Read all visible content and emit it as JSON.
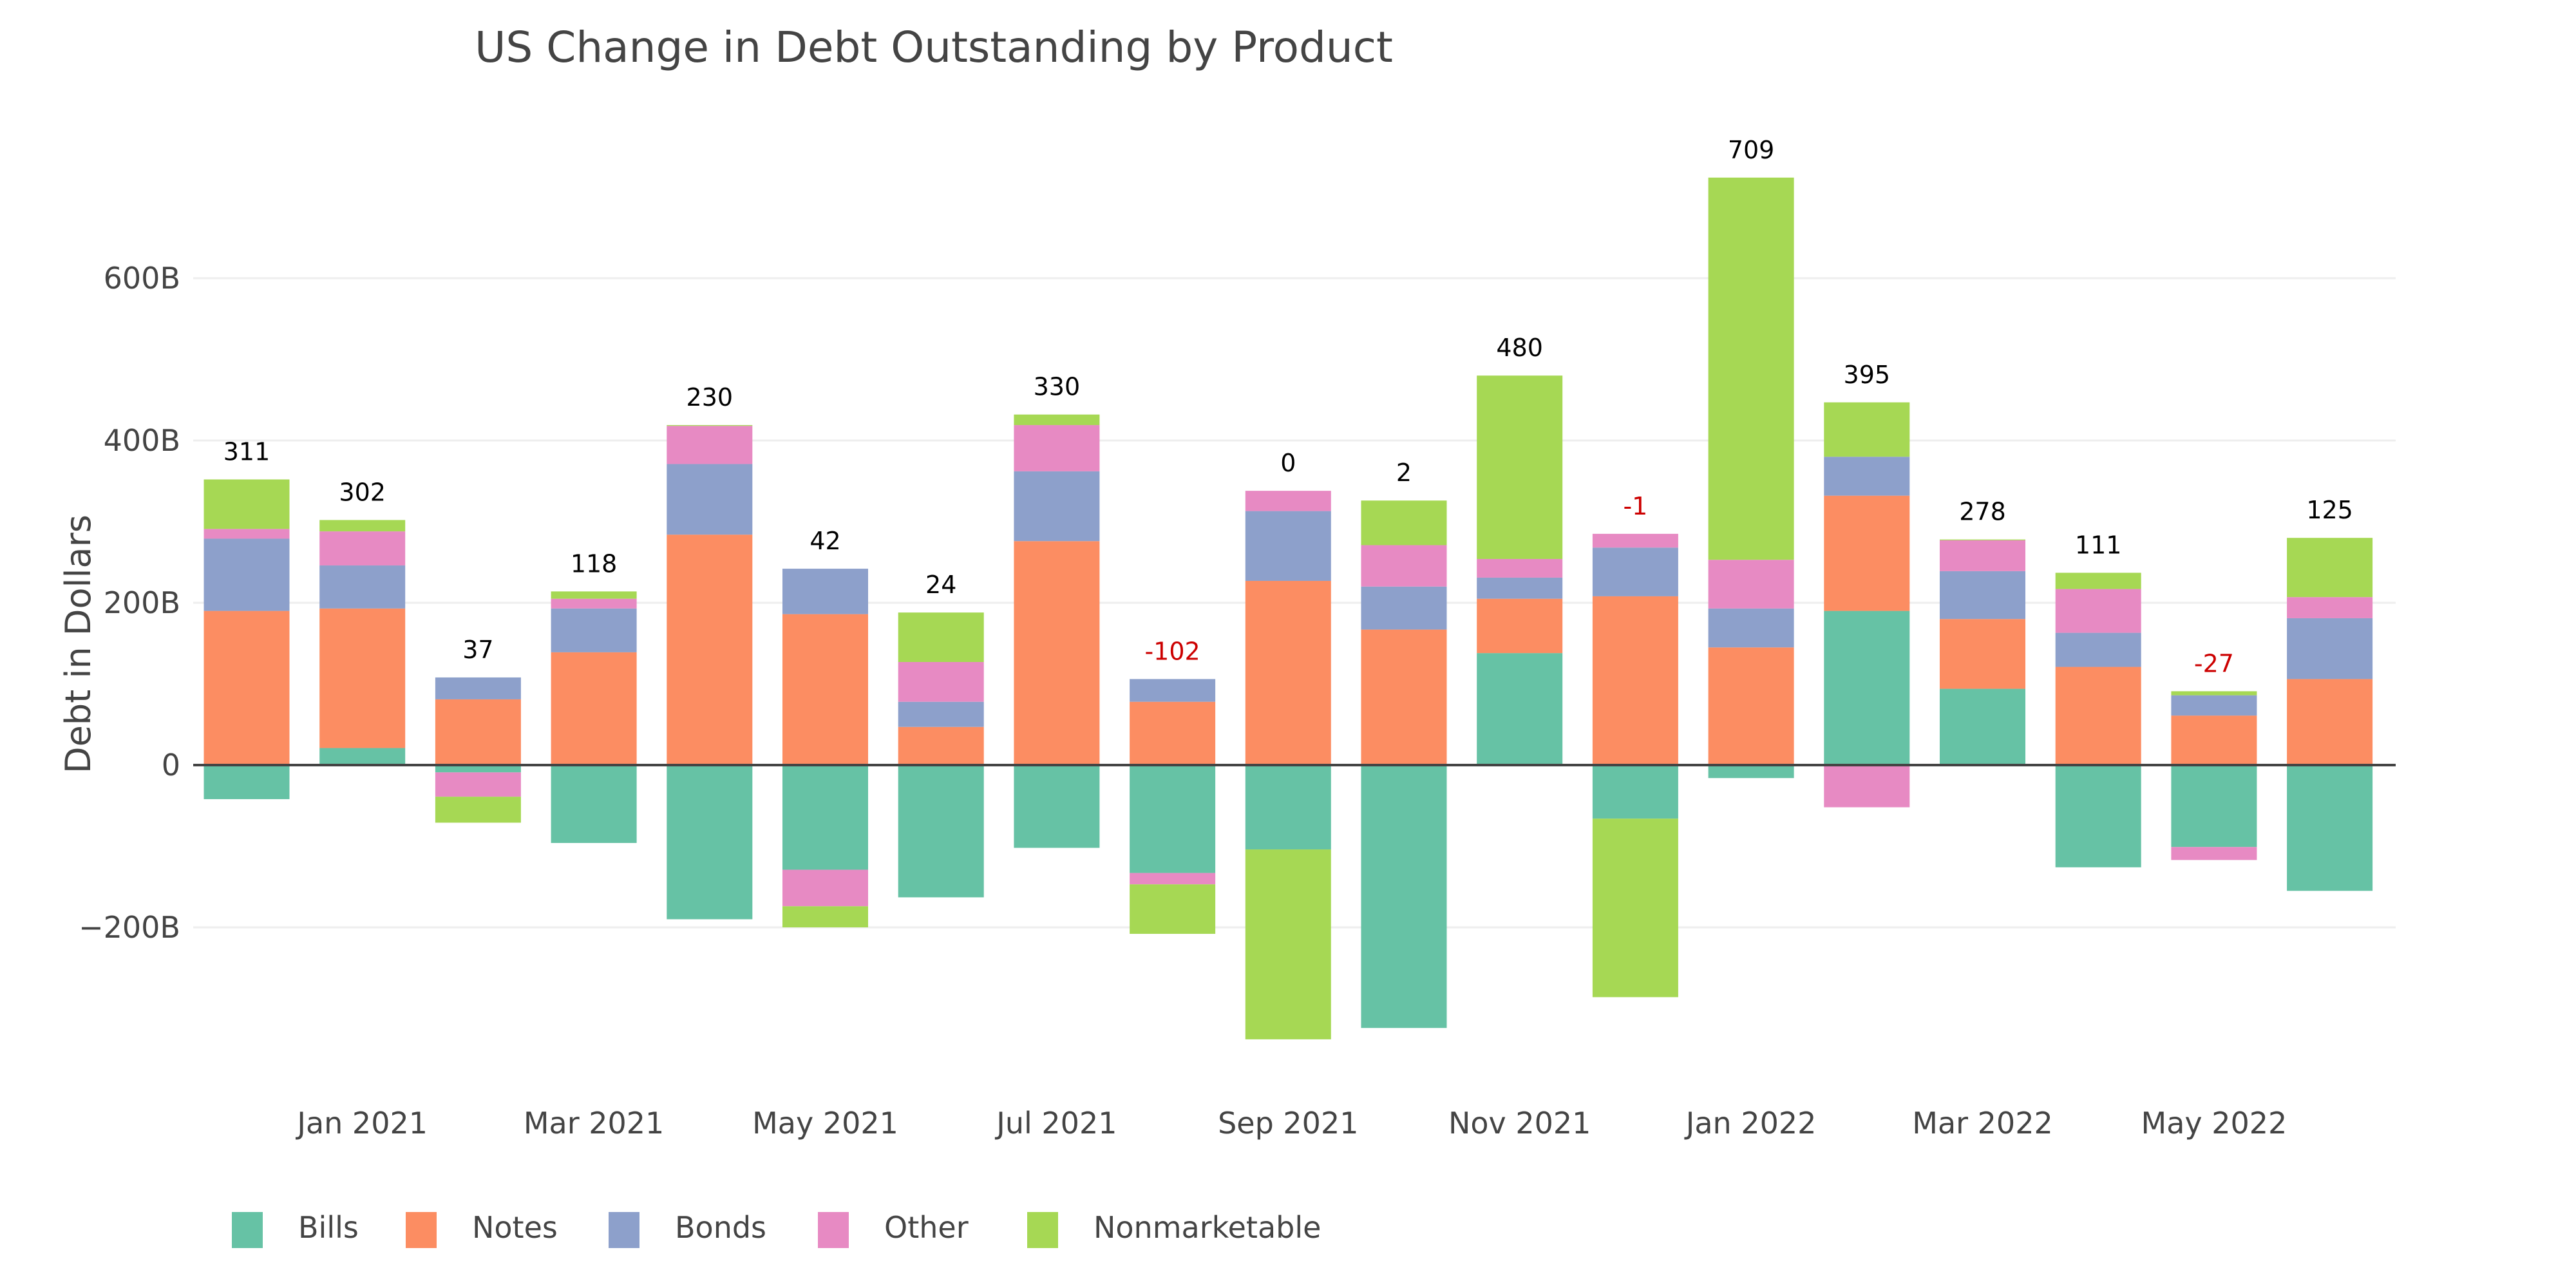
{
  "chart_data": {
    "type": "bar",
    "stacked": "relative",
    "title": "US Change in Debt Outstanding by Product",
    "xlabel": "",
    "ylabel": "Debt in Dollars",
    "ylim": [
      -380,
      800
    ],
    "yticks": [
      {
        "value": -200,
        "label": "−200B"
      },
      {
        "value": 0,
        "label": "0"
      },
      {
        "value": 200,
        "label": "200B"
      },
      {
        "value": 400,
        "label": "400B"
      },
      {
        "value": 600,
        "label": "600B"
      }
    ],
    "grid": true,
    "legend_position": "bottom-left",
    "categories": [
      "Dec 2020",
      "Jan 2021",
      "Feb 2021",
      "Mar 2021",
      "Apr 2021",
      "May 2021",
      "Jun 2021",
      "Jul 2021",
      "Aug 2021",
      "Sep 2021",
      "Oct 2021",
      "Nov 2021",
      "Dec 2021",
      "Jan 2022",
      "Feb 2022",
      "Mar 2022",
      "Apr 2022",
      "May 2022",
      "Jun 2022"
    ],
    "xticks": [
      {
        "index": 1,
        "label": "Jan 2021"
      },
      {
        "index": 3,
        "label": "Mar 2021"
      },
      {
        "index": 5,
        "label": "May 2021"
      },
      {
        "index": 7,
        "label": "Jul 2021"
      },
      {
        "index": 9,
        "label": "Sep 2021"
      },
      {
        "index": 11,
        "label": "Nov 2021"
      },
      {
        "index": 13,
        "label": "Jan 2022"
      },
      {
        "index": 15,
        "label": "Mar 2022"
      },
      {
        "index": 17,
        "label": "May 2022"
      }
    ],
    "series": [
      {
        "name": "Bills",
        "color": "#66c2a5",
        "values": [
          -42,
          21,
          -9,
          -96,
          -190,
          -129,
          -163,
          -102,
          -133,
          -104,
          -324,
          138,
          -66,
          -16,
          190,
          94,
          -126,
          -101,
          -155
        ]
      },
      {
        "name": "Notes",
        "color": "#fc8d62",
        "values": [
          190,
          172,
          81,
          139,
          284,
          186,
          47,
          276,
          78,
          227,
          167,
          67,
          208,
          145,
          142,
          86,
          121,
          61,
          106
        ]
      },
      {
        "name": "Bonds",
        "color": "#8da0cb",
        "values": [
          89,
          53,
          27,
          54,
          87,
          56,
          31,
          86,
          28,
          86,
          53,
          26,
          60,
          48,
          48,
          59,
          42,
          25,
          75
        ]
      },
      {
        "name": "Other",
        "color": "#e78ac3",
        "values": [
          12,
          42,
          -30,
          12,
          47,
          -45,
          49,
          57,
          -14,
          25,
          51,
          23,
          17,
          60,
          -52,
          38,
          54,
          -16,
          26
        ]
      },
      {
        "name": "Nonmarketable",
        "color": "#a6d854",
        "values": [
          61,
          14,
          -32,
          9,
          1,
          -26,
          61,
          13,
          -61,
          -234,
          55,
          226,
          -220,
          471,
          67,
          1,
          20,
          5,
          73
        ]
      }
    ],
    "total_labels": [
      "311",
      "302",
      "37",
      "118",
      "230",
      "42",
      "24",
      "330",
      "-102",
      "0",
      "2",
      "480",
      "-1",
      "709",
      "395",
      "278",
      "111",
      "-27",
      "125"
    ],
    "total_label_colors": {
      "positive": "#000000",
      "negative": "#cc0000"
    }
  }
}
